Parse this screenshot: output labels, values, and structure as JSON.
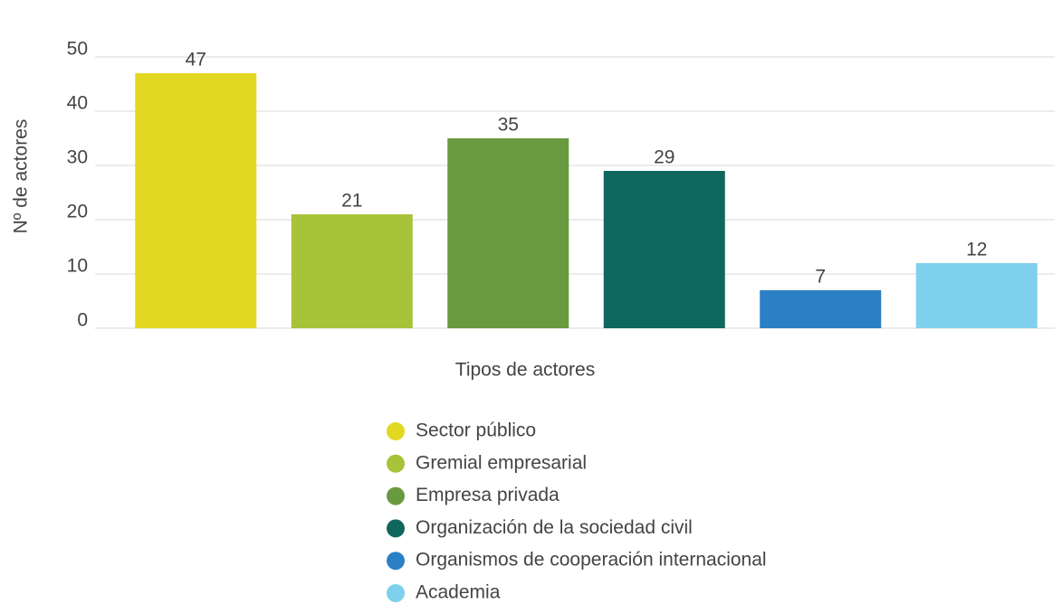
{
  "chart_data": {
    "type": "bar",
    "categories": [
      "Sector público",
      "Gremial empresarial",
      "Empresa privada",
      "Organización de la sociedad civil",
      "Organismos de cooperación internacional",
      "Academia"
    ],
    "values": [
      47,
      21,
      35,
      29,
      7,
      12
    ],
    "colors": [
      "#e2d821",
      "#a6c339",
      "#6a9a3f",
      "#10675e",
      "#2a7fc5",
      "#7fd0ec"
    ],
    "xlabel": "Tipos de actores",
    "ylabel": "Nº de actores",
    "ylim": [
      0,
      50
    ],
    "yticks": [
      0,
      10,
      20,
      30,
      40,
      50
    ],
    "grid": true,
    "legend": "bottom"
  }
}
